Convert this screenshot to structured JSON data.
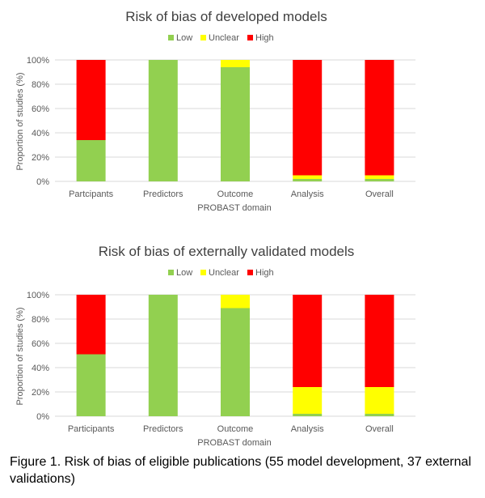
{
  "colors": {
    "Low": "#92d050",
    "Unclear": "#ffff00",
    "High": "#ff0000",
    "grid": "#d9d9d9"
  },
  "chart_data": [
    {
      "type": "bar",
      "stacked": true,
      "title": "Risk of bias of developed models",
      "xlabel": "PROBAST domain",
      "ylabel": "Proportion of studies (%)",
      "ylim": [
        0,
        100
      ],
      "yticks": [
        "0%",
        "20%",
        "40%",
        "60%",
        "80%",
        "100%"
      ],
      "legend_position": "top",
      "grid": true,
      "categories": [
        "Partcipants",
        "Predictors",
        "Outcome",
        "Analysis",
        "Overall"
      ],
      "series": [
        {
          "name": "Low",
          "values": [
            34,
            100,
            94,
            2,
            2
          ]
        },
        {
          "name": "Unclear",
          "values": [
            0,
            0,
            6,
            3,
            3
          ]
        },
        {
          "name": "High",
          "values": [
            66,
            0,
            0,
            95,
            95
          ]
        }
      ]
    },
    {
      "type": "bar",
      "stacked": true,
      "title": "Risk of bias of externally validated models",
      "xlabel": "PROBAST domain",
      "ylabel": "Proportion of studies (%)",
      "ylim": [
        0,
        100
      ],
      "yticks": [
        "0%",
        "20%",
        "40%",
        "60%",
        "80%",
        "100%"
      ],
      "legend_position": "top",
      "grid": true,
      "categories": [
        "Participants",
        "Predictors",
        "Outcome",
        "Analysis",
        "Overall"
      ],
      "series": [
        {
          "name": "Low",
          "values": [
            51,
            100,
            89,
            2,
            2
          ]
        },
        {
          "name": "Unclear",
          "values": [
            0,
            0,
            11,
            22,
            22
          ]
        },
        {
          "name": "High",
          "values": [
            49,
            0,
            0,
            76,
            76
          ]
        }
      ]
    }
  ],
  "caption": "Figure 1. Risk of bias of eligible publications (55 model development, 37 external validations)"
}
